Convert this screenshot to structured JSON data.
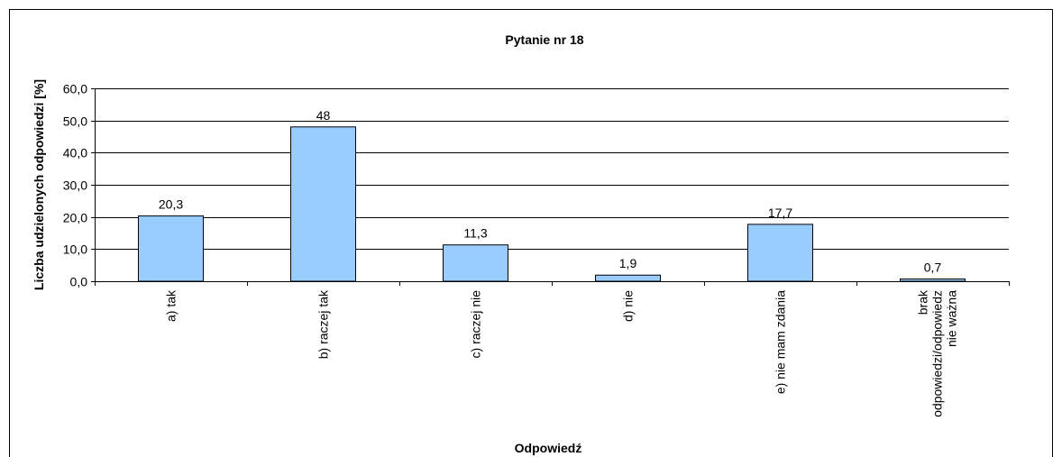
{
  "chart_data": {
    "type": "bar",
    "title": "Pytanie nr 18",
    "y_label": "Liczba udzielonych odpowiedzi [%]",
    "x_label": "Odpowiedź",
    "categories": [
      "a) tak",
      "b) raczej tak",
      "c) raczej nie",
      "d) nie",
      "e) nie mam zdania",
      "brak\nodpowiedzi/odpowiedz\nnie ważna"
    ],
    "values": [
      20.3,
      48,
      11.3,
      1.9,
      17.7,
      0.7
    ],
    "value_labels": [
      "20,3",
      "48",
      "11,3",
      "1,9",
      "17,7",
      "0,7"
    ],
    "color": "#99ccff",
    "ylim": [
      0,
      60
    ],
    "yticks": [
      {
        "value": 0,
        "label": "0,0"
      },
      {
        "value": 10,
        "label": "10,0"
      },
      {
        "value": 20,
        "label": "20,0"
      },
      {
        "value": 30,
        "label": "30,0"
      },
      {
        "value": 40,
        "label": "40,0"
      },
      {
        "value": 50,
        "label": "50,0"
      },
      {
        "value": 60,
        "label": "60,0"
      }
    ],
    "grid": true
  }
}
